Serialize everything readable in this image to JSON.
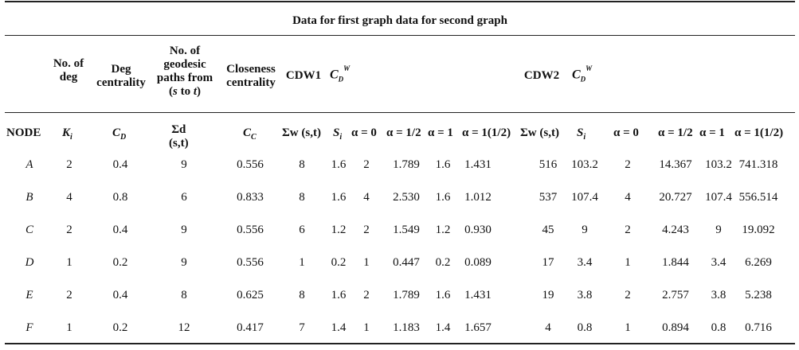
{
  "caption": "Data for first graph data for second graph",
  "top_headers": {
    "no_of_deg": [
      "No. of",
      "deg"
    ],
    "deg_centrality": [
      "Deg",
      "centrality"
    ],
    "geodesic": [
      "No. of",
      "geodesic",
      "paths from"
    ],
    "geodesic_st": [
      "(",
      "s",
      " to ",
      "t",
      ")"
    ],
    "closeness": [
      "Closeness",
      "centrality"
    ],
    "cdw1": "CDW1",
    "cdw2": "CDW2",
    "cd_symbol": "C",
    "cd_sub": "D",
    "cd_sup": "W"
  },
  "column_headers": {
    "node": "NODE",
    "k": "K",
    "k_sub": "i",
    "cd": "C",
    "cd_sub": "D",
    "sigma_d": "Σd",
    "sigma_d_st": "(s,t)",
    "cc": "C",
    "cc_sub": "C",
    "sum_w": "Σw (s,t)",
    "s": "S",
    "s_sub": "i",
    "a0": "α = 0",
    "a_half": "α = 1/2",
    "a1": "α = 1",
    "a_1half": "α = 1(1/2)"
  },
  "rows": [
    [
      "A",
      "2",
      "0.4",
      "9",
      "0.556",
      "8",
      "1.6",
      "2",
      "1.789",
      "1.6",
      "1.431",
      "516",
      "103.2",
      "2",
      "14.367",
      "103.2",
      "741.318"
    ],
    [
      "B",
      "4",
      "0.8",
      "6",
      "0.833",
      "8",
      "1.6",
      "4",
      "2.530",
      "1.6",
      "1.012",
      "537",
      "107.4",
      "4",
      "20.727",
      "107.4",
      "556.514"
    ],
    [
      "C",
      "2",
      "0.4",
      "9",
      "0.556",
      "6",
      "1.2",
      "2",
      "1.549",
      "1.2",
      "0.930",
      "45",
      "9",
      "2",
      "4.243",
      "9",
      "19.092"
    ],
    [
      "D",
      "1",
      "0.2",
      "9",
      "0.556",
      "1",
      "0.2",
      "1",
      "0.447",
      "0.2",
      "0.089",
      "17",
      "3.4",
      "1",
      "1.844",
      "3.4",
      "6.269"
    ],
    [
      "E",
      "2",
      "0.4",
      "8",
      "0.625",
      "8",
      "1.6",
      "2",
      "1.789",
      "1.6",
      "1.431",
      "19",
      "3.8",
      "2",
      "2.757",
      "3.8",
      "5.238"
    ],
    [
      "F",
      "1",
      "0.2",
      "12",
      "0.417",
      "7",
      "1.4",
      "1",
      "1.183",
      "1.4",
      "1.657",
      "4",
      "0.8",
      "1",
      "0.894",
      "0.8",
      "0.716"
    ]
  ]
}
